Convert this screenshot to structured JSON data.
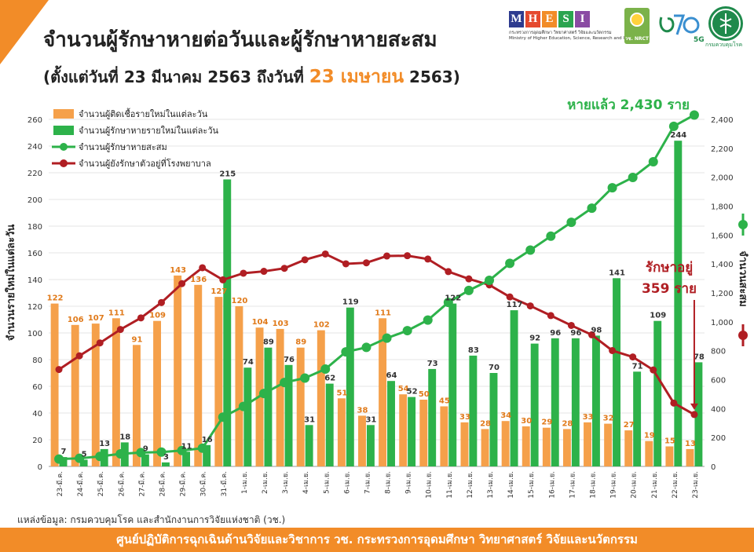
{
  "header": {
    "title": "จำนวนผู้รักษาหายต่อวันและผู้รักษาหายสะสม",
    "subtitle_pre": "(ตั้งแต่วันที่ 23 มีนาคม 2563 ถึงวันที่ ",
    "subtitle_date": "23 เมษายน",
    "subtitle_post": " 2563)"
  },
  "logos": {
    "mhesi_letters": [
      "M",
      "H",
      "E",
      "S",
      "I"
    ],
    "mhesi_colors": [
      "#2e3b8f",
      "#e5492f",
      "#f28c28",
      "#2aa44f",
      "#8a4ba3"
    ],
    "mhesi_sub_th": "กระทรวงการอุดมศึกษา วิทยาศาสตร์ วิจัยและนวัตกรรม",
    "mhesi_sub_en": "Ministry of Higher Education, Science, Research and Innovation",
    "nrct_label": "วช. NRCT",
    "seventy_label": "5G",
    "moph_label": "กรมควบคุมโรค"
  },
  "chart_data": {
    "type": "bar",
    "categories": [
      "23-มี.ค.",
      "24-มี.ค.",
      "25-มี.ค.",
      "26-มี.ค.",
      "27-มี.ค.",
      "28-มี.ค.",
      "29-มี.ค.",
      "30-มี.ค.",
      "31-มี.ค.",
      "1-เม.ย.",
      "2-เม.ย.",
      "3-เม.ย.",
      "4-เม.ย.",
      "5-เม.ย.",
      "6-เม.ย.",
      "7-เม.ย.",
      "8-เม.ย.",
      "9-เม.ย.",
      "10-เม.ย.",
      "11-เม.ย.",
      "12-เม.ย.",
      "13-เม.ย.",
      "14-เม.ย.",
      "15-เม.ย.",
      "16-เม.ย.",
      "17-เม.ย.",
      "18-เม.ย.",
      "19-เม.ย.",
      "20-เม.ย.",
      "21-เม.ย.",
      "22-เม.ย.",
      "23-เม.ย."
    ],
    "series": [
      {
        "name": "จำนวนผู้ติดเชื้อรายใหม่ในแต่ละวัน",
        "type": "bar",
        "axis": "left",
        "color": "#f5a04a",
        "values": [
          122,
          106,
          107,
          111,
          91,
          109,
          143,
          136,
          127,
          120,
          104,
          103,
          89,
          102,
          51,
          38,
          111,
          54,
          50,
          45,
          33,
          28,
          34,
          30,
          29,
          28,
          33,
          32,
          27,
          19,
          15,
          13
        ]
      },
      {
        "name": "จำนวนผู้รักษาหายรายใหม่ในแต่ละวัน",
        "type": "bar",
        "axis": "left",
        "color": "#2db24a",
        "values": [
          7,
          5,
          13,
          18,
          9,
          3,
          11,
          16,
          215,
          74,
          89,
          76,
          31,
          62,
          119,
          31,
          64,
          52,
          73,
          122,
          83,
          70,
          117,
          92,
          96,
          96,
          98,
          141,
          71,
          109,
          244,
          78
        ]
      },
      {
        "name": "จำนวนผู้รักษาหายสะสม",
        "type": "line",
        "axis": "right",
        "color": "#2db24a",
        "values": [
          51,
          56,
          69,
          87,
          96,
          99,
          110,
          126,
          341,
          415,
          504,
          580,
          611,
          673,
          792,
          823,
          887,
          939,
          1012,
          1134,
          1217,
          1287,
          1404,
          1496,
          1592,
          1688,
          1786,
          1927,
          1998,
          2107,
          2352,
          2430
        ]
      },
      {
        "name": "จำนวนผู้ยังรักษาตัวอยู่ที่โรงพยาบาล",
        "type": "line",
        "axis": "right",
        "color": "#b01e23",
        "values": [
          670,
          765,
          854,
          947,
          1027,
          1133,
          1264,
          1374,
          1290,
          1336,
          1349,
          1370,
          1429,
          1469,
          1401,
          1408,
          1455,
          1457,
          1434,
          1347,
          1297,
          1255,
          1172,
          1110,
          1043,
          975,
          910,
          801,
          757,
          667,
          438,
          359
        ]
      }
    ],
    "ylim": [
      0,
      260
    ],
    "y2lim": [
      0,
      2400
    ],
    "yticks": [
      0,
      20,
      40,
      60,
      80,
      100,
      120,
      140,
      160,
      180,
      200,
      220,
      240,
      260
    ],
    "y2ticks": [
      "0",
      "200",
      "400",
      "600",
      "800",
      "1,000",
      "1,200",
      "1,400",
      "1,600",
      "1,800",
      "2,000",
      "2,200",
      "2,400"
    ],
    "ylabel": "จำนวนรายใหม่ในแต่ละวัน",
    "y2label": "จำนวนสะสม",
    "legend_position": "top-left",
    "annotations": {
      "recovered_total": "หายแล้ว 2,430 ราย",
      "in_treatment_line1": "รักษาอยู่",
      "in_treatment_line2": "359 ราย"
    }
  },
  "colors": {
    "accent": "#f28c28",
    "green": "#2db24a",
    "dark_red": "#b01e23",
    "orange_bar": "#f5a04a"
  },
  "footer": {
    "source": "แหล่งข้อมูล: กรมควบคุมโรค และสำนักงานการวิจัยแห่งชาติ (วช.)",
    "banner": "ศูนย์ปฏิบัติการฉุกเฉินด้านวิจัยและวิชาการ   วช.   กระทรวงการอุดมศึกษา วิทยาศาสตร์ วิจัยและนวัตกรรม"
  }
}
